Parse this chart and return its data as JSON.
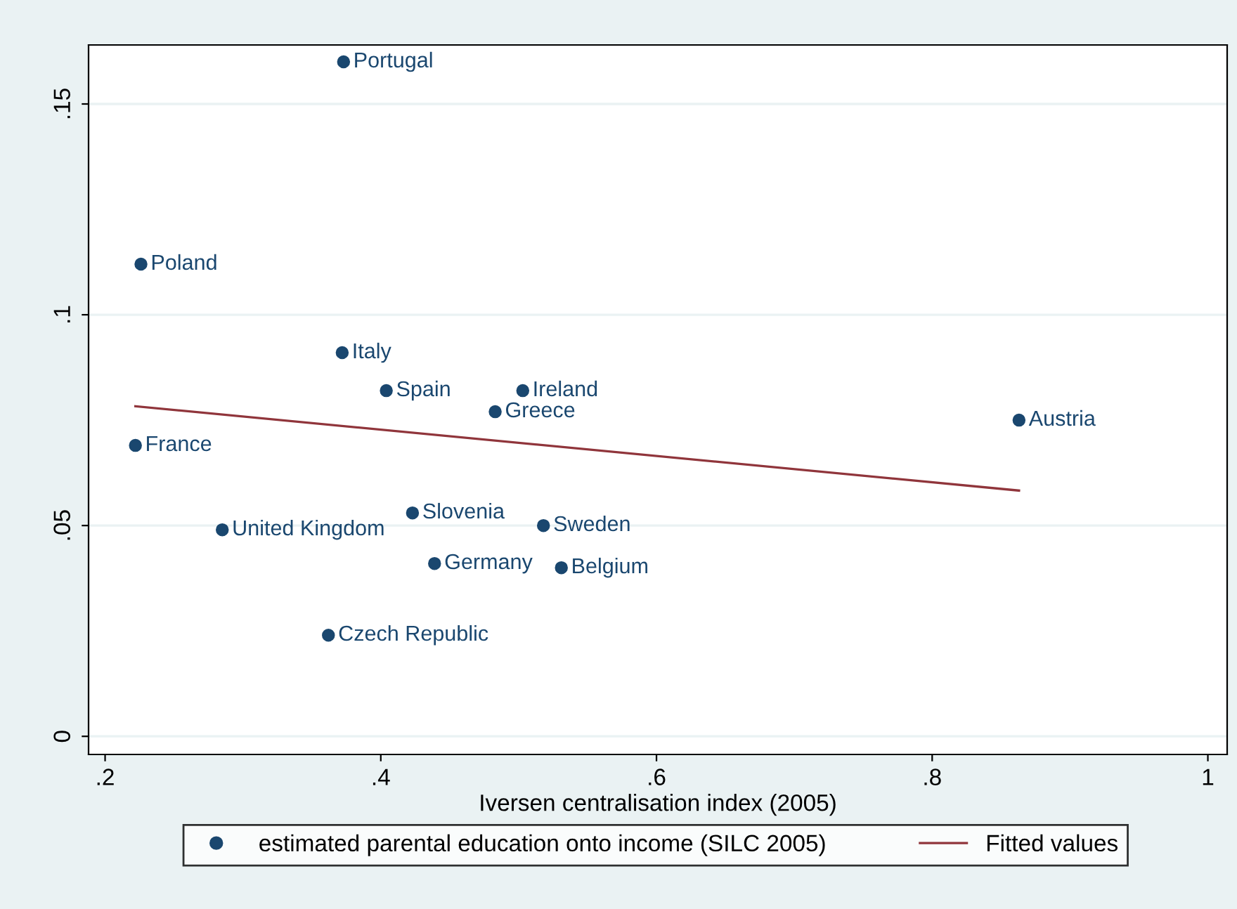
{
  "chart_data": {
    "type": "scatter",
    "xlabel": "Iversen centralisation index (2005)",
    "xlim": [
      0.188,
      1.014
    ],
    "ylim": [
      -0.0043,
      0.164
    ],
    "xticks": [
      {
        "value": 0.2,
        "label": ".2"
      },
      {
        "value": 0.4,
        "label": ".4"
      },
      {
        "value": 0.6,
        "label": ".6"
      },
      {
        "value": 0.8,
        "label": ".8"
      },
      {
        "value": 1,
        "label": "1"
      }
    ],
    "yticks": [
      {
        "value": 0,
        "label": "0"
      },
      {
        "value": 0.05,
        "label": ".05"
      },
      {
        "value": 0.1,
        "label": ".1"
      },
      {
        "value": 0.15,
        "label": ".15"
      }
    ],
    "grid": "y",
    "legend": "bottom",
    "series": [
      {
        "name": "estimated parental education onto income (SILC 2005)",
        "marker": "circle",
        "color": "#1a476f",
        "x": [
          0.373,
          0.226,
          0.372,
          0.404,
          0.503,
          0.483,
          0.863,
          0.222,
          0.423,
          0.285,
          0.518,
          0.439,
          0.531,
          0.362
        ],
        "values": [
          0.16,
          0.112,
          0.091,
          0.082,
          0.082,
          0.077,
          0.075,
          0.069,
          0.053,
          0.049,
          0.05,
          0.041,
          0.04,
          0.024
        ]
      },
      {
        "name": "Fitted values",
        "type": "line",
        "color": "#90353b",
        "x": [
          0.222,
          0.863
        ],
        "values": [
          0.0783,
          0.0583
        ]
      }
    ],
    "annotations": [
      {
        "text": "Portugal",
        "x": 0.373,
        "y": 0.16
      },
      {
        "text": "Poland",
        "x": 0.226,
        "y": 0.112
      },
      {
        "text": "Italy",
        "x": 0.372,
        "y": 0.091
      },
      {
        "text": "Spain",
        "x": 0.404,
        "y": 0.082
      },
      {
        "text": "Ireland",
        "x": 0.503,
        "y": 0.082
      },
      {
        "text": "Greece",
        "x": 0.483,
        "y": 0.077
      },
      {
        "text": "Austria",
        "x": 0.863,
        "y": 0.075
      },
      {
        "text": "France",
        "x": 0.222,
        "y": 0.069
      },
      {
        "text": "Slovenia",
        "x": 0.423,
        "y": 0.053
      },
      {
        "text": "United Kingdom",
        "x": 0.285,
        "y": 0.049
      },
      {
        "text": "Sweden",
        "x": 0.518,
        "y": 0.05
      },
      {
        "text": "Germany",
        "x": 0.439,
        "y": 0.041
      },
      {
        "text": "Belgium",
        "x": 0.531,
        "y": 0.04
      },
      {
        "text": "Czech Republic",
        "x": 0.362,
        "y": 0.024
      }
    ]
  }
}
